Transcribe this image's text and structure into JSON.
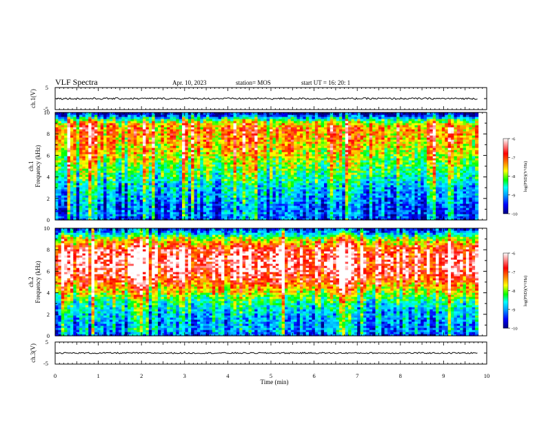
{
  "header": {
    "title": "VLF Spectra",
    "date": "Apr. 10, 2023",
    "station": "station= MOS",
    "start_ut": "start  UT =   16: 20: 1"
  },
  "chart_data": [
    {
      "type": "line",
      "name": "ch1-waveform",
      "ylabel": "ch.1(V)",
      "ylim": [
        -5,
        5
      ],
      "yticks": [
        "5",
        "-5"
      ],
      "xlim": [
        0,
        10
      ],
      "level": 0,
      "amplitude": 0.4
    },
    {
      "type": "heatmap",
      "name": "ch1-spectrogram",
      "ylabel_line1": "ch.1",
      "ylabel_line2": "Frequency (kHz)",
      "ylim": [
        0,
        10
      ],
      "yticks": [
        "0",
        "2",
        "4",
        "6",
        "8",
        "10"
      ],
      "xlim": [
        0,
        9.8
      ],
      "colorbar": {
        "label": "log(PSD)(V²/Hz)",
        "range": [
          -10,
          -6
        ],
        "ticks": [
          "-6",
          "-7",
          "-8",
          "-9",
          "-10"
        ],
        "colors": [
          "#000080",
          "#0000ff",
          "#00a0ff",
          "#00ffff",
          "#00ff00",
          "#ffff00",
          "#ff8000",
          "#ff0000",
          "#ffffff"
        ]
      },
      "intensity_profile_by_frequency_khz": [
        [
          0,
          -9.4
        ],
        [
          0.5,
          -9.2
        ],
        [
          1,
          -9.3
        ],
        [
          2,
          -9.0
        ],
        [
          3,
          -8.8
        ],
        [
          4,
          -8.3
        ],
        [
          5,
          -8.0
        ],
        [
          6,
          -7.6
        ],
        [
          7,
          -7.3
        ],
        [
          8,
          -7.1
        ],
        [
          8.5,
          -7.0
        ],
        [
          9,
          -7.4
        ],
        [
          9.4,
          -8.4
        ],
        [
          9.8,
          -9.6
        ],
        [
          10,
          -10
        ]
      ]
    },
    {
      "type": "heatmap",
      "name": "ch2-spectrogram",
      "ylabel_line1": "ch.2",
      "ylabel_line2": "Frequency (kHz)",
      "ylim": [
        0,
        10
      ],
      "yticks": [
        "0",
        "2",
        "4",
        "6",
        "8",
        "10"
      ],
      "xlim": [
        0,
        9.8
      ],
      "colorbar": {
        "label": "log(PSD)(V²/Hz)",
        "range": [
          -10,
          -6
        ],
        "ticks": [
          "-6",
          "-7",
          "-8",
          "-9",
          "-10"
        ],
        "colors": [
          "#000080",
          "#0000ff",
          "#00a0ff",
          "#00ffff",
          "#00ff00",
          "#ffff00",
          "#ff8000",
          "#ff0000",
          "#ffffff"
        ]
      },
      "intensity_profile_by_frequency_khz": [
        [
          0,
          -9.4
        ],
        [
          0.5,
          -8.9
        ],
        [
          1,
          -9.0
        ],
        [
          2,
          -8.8
        ],
        [
          3,
          -8.4
        ],
        [
          4,
          -7.6
        ],
        [
          5,
          -6.8
        ],
        [
          6,
          -6.3
        ],
        [
          7,
          -6.2
        ],
        [
          8,
          -6.4
        ],
        [
          9,
          -7.6
        ],
        [
          9.5,
          -8.6
        ],
        [
          10,
          -9.6
        ]
      ]
    },
    {
      "type": "line",
      "name": "ch3-waveform",
      "ylabel": "ch.3(V)",
      "ylim": [
        -5,
        5
      ],
      "yticks": [
        "5",
        "-5"
      ],
      "xlim": [
        0,
        10
      ],
      "level": 0,
      "amplitude": 0.3
    }
  ],
  "x_axis": {
    "label": "Time  (min)",
    "ticks": [
      "0",
      "1",
      "2",
      "3",
      "4",
      "5",
      "6",
      "7",
      "8",
      "9",
      "10"
    ],
    "range": [
      0,
      10
    ]
  }
}
